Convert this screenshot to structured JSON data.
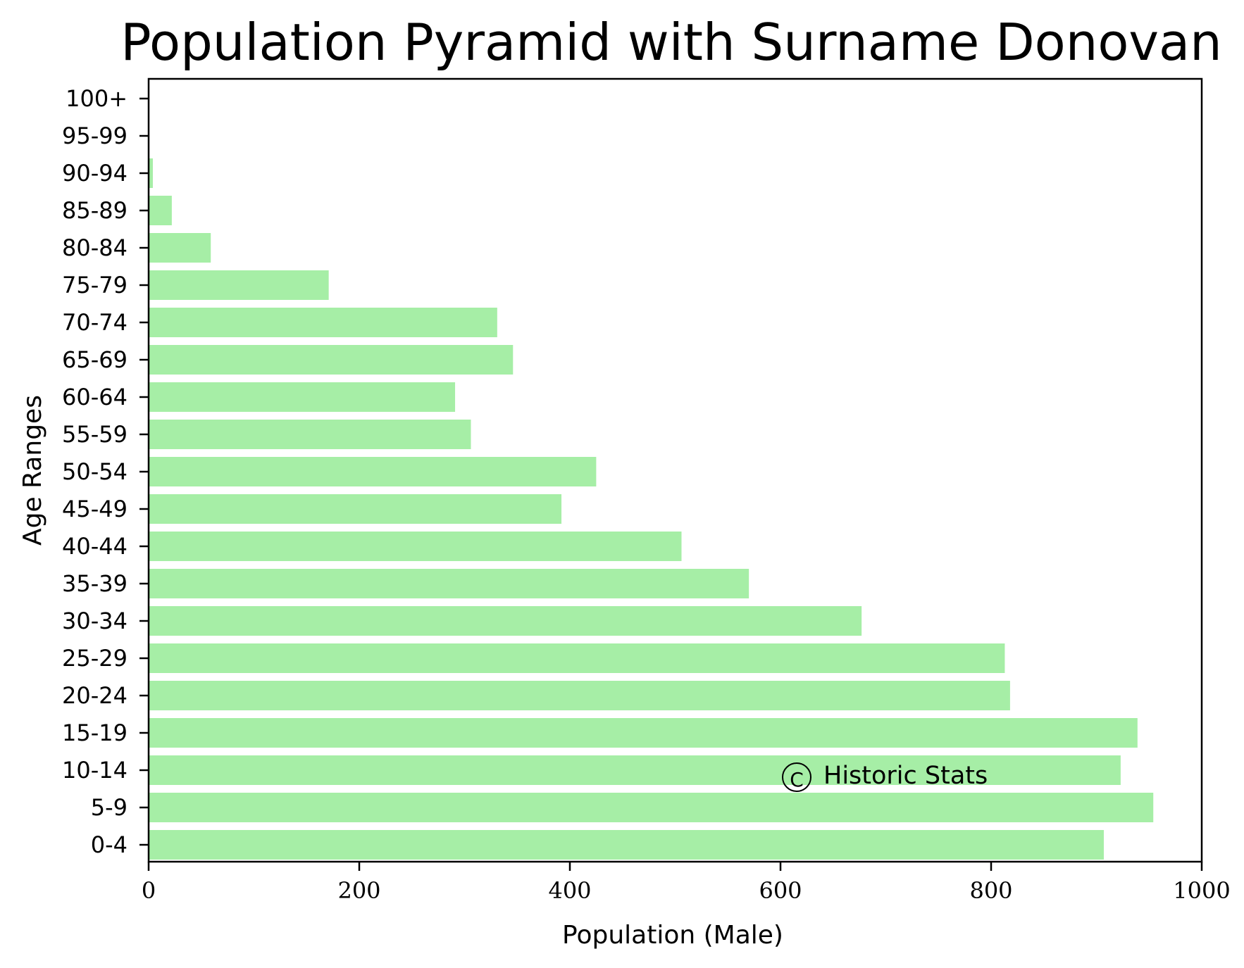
{
  "chart_data": {
    "type": "bar",
    "orientation": "horizontal",
    "title": "Population Pyramid with Surname Donovan",
    "xlabel": "Population (Male)",
    "ylabel": "Age Ranges",
    "xlim": [
      0,
      1000
    ],
    "xticks": [
      0,
      200,
      400,
      600,
      800,
      1000
    ],
    "xtick_labels": [
      "0",
      "200",
      "400",
      "600",
      "800",
      "1000"
    ],
    "grid": false,
    "legend": "none",
    "bar_color": "#a6eea6",
    "categories": [
      "0-4",
      "5-9",
      "10-14",
      "15-19",
      "20-24",
      "25-29",
      "30-34",
      "35-39",
      "40-44",
      "45-49",
      "50-54",
      "55-59",
      "60-64",
      "65-69",
      "70-74",
      "75-79",
      "80-84",
      "85-89",
      "90-94",
      "95-99",
      "100+"
    ],
    "values": [
      907,
      954,
      923,
      939,
      818,
      813,
      677,
      570,
      506,
      392,
      425,
      306,
      291,
      346,
      331,
      171,
      59,
      22,
      4,
      0,
      0
    ],
    "annotations": [
      {
        "symbol": "C",
        "text": "Historic Stats"
      }
    ]
  }
}
